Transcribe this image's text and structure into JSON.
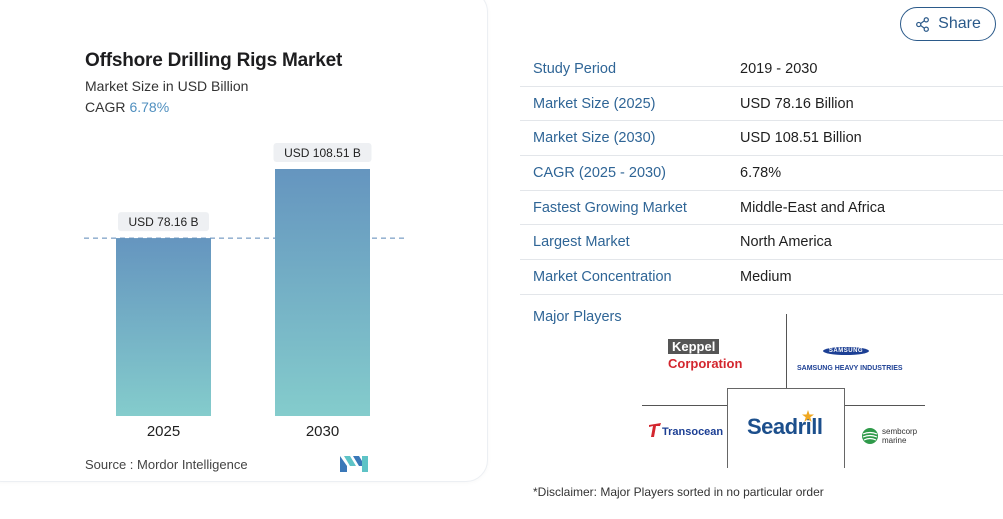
{
  "chart": {
    "title": "Offshore Drilling Rigs Market",
    "subtitle": "Market Size in USD Billion",
    "cagr_label": "CAGR",
    "cagr_value": "6.78%",
    "source": "Source : Mordor Intelligence",
    "bar_label_2025": "USD 78.16 B",
    "bar_label_2030": "USD 108.51 B"
  },
  "chart_data": {
    "type": "bar",
    "title": "Offshore Drilling Rigs Market",
    "subtitle": "Market Size in USD Billion",
    "categories": [
      "2025",
      "2030"
    ],
    "values": [
      78.16,
      108.51
    ],
    "data_labels": [
      "USD 78.16 B",
      "USD 108.51 B"
    ],
    "xlabel": "",
    "ylabel": "",
    "ylim": [
      0,
      108.51
    ],
    "grid": false,
    "reference_line": 78.16,
    "bar_gradient": [
      "#6595bf",
      "#84cccc"
    ]
  },
  "share": {
    "label": "Share",
    "icon": "share-icon"
  },
  "info": {
    "rows": [
      {
        "key": "Study Period",
        "value": "2019 - 2030"
      },
      {
        "key": "Market Size (2025)",
        "value": "USD 78.16 Billion"
      },
      {
        "key": "Market Size (2030)",
        "value": "USD 108.51 Billion"
      },
      {
        "key": "CAGR (2025 - 2030)",
        "value": "6.78%"
      },
      {
        "key": "Fastest Growing Market",
        "value": "Middle-East and Africa"
      },
      {
        "key": "Largest Market",
        "value": "North America"
      },
      {
        "key": "Market Concentration",
        "value": "Medium"
      }
    ]
  },
  "players": {
    "label": "Major Players",
    "logos": {
      "keppel": [
        "Keppel",
        "Corporation"
      ],
      "samsung": [
        "SAMSUNG",
        "SAMSUNG HEAVY INDUSTRIES"
      ],
      "transocean": "Transocean",
      "seadrill": "Seadrill",
      "sembcorp": [
        "sembcorp",
        "marine"
      ]
    },
    "disclaimer": "*Disclaimer: Major Players sorted in no particular order"
  },
  "colors": {
    "accent": "#2f6596",
    "cagr": "#4f8fbf",
    "keppel_red": "#d3262e",
    "seadrill_blue": "#1c4f8c",
    "sembcorp_green": "#2f9a4a"
  }
}
